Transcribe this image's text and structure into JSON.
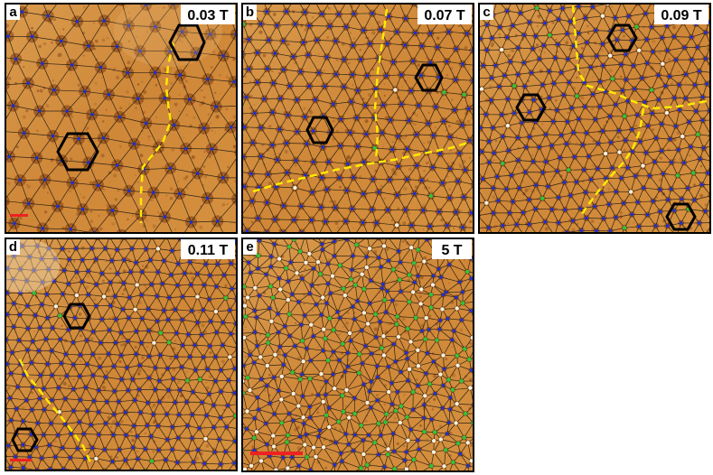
{
  "colors": {
    "background": "#d08a3a",
    "blob": "#7a3a10",
    "lattice": "#111111",
    "vertex6": "#1f2fd0",
    "vertex5": "#f4f0dc",
    "vertex7": "#2fc43a",
    "grain_boundary": "#ffea00",
    "scale_bar": "#ee2222",
    "hexagon": "#000000"
  },
  "panels": [
    {
      "letter": "a",
      "field": "0.03 T"
    },
    {
      "letter": "b",
      "field": "0.07 T"
    },
    {
      "letter": "c",
      "field": "0.09 T"
    },
    {
      "letter": "d",
      "field": "0.11 T"
    },
    {
      "letter": "e",
      "field": "5 T"
    }
  ]
}
